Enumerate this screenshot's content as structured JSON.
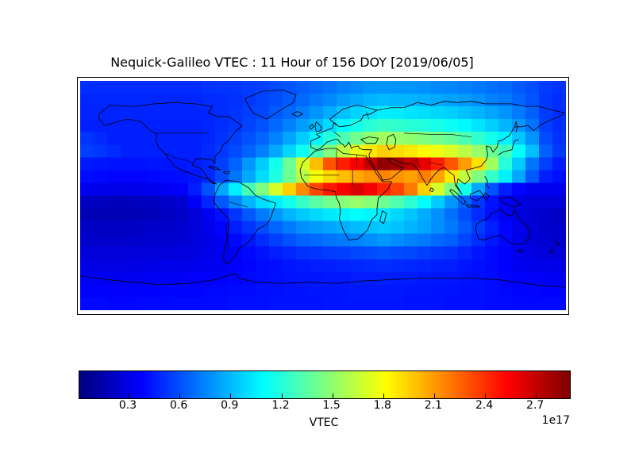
{
  "chart_data": {
    "type": "heatmap",
    "title": "Nequick-Galileo VTEC : 11 Hour of 156 DOY [2019/06/05]",
    "colormap": "jet",
    "colorbar_label": "VTEC",
    "units_exponent_label": "1e17",
    "vmin": 0.01,
    "vmax": 2.9,
    "colorbar_tick_labels": [
      "0.3",
      "0.6",
      "0.9",
      "1.2",
      "1.5",
      "1.8",
      "2.1",
      "2.4",
      "2.7"
    ],
    "colorbar_tick_values": [
      0.3,
      0.6,
      0.9,
      1.2,
      1.5,
      1.8,
      2.1,
      2.4,
      2.7
    ],
    "lon_range": [
      -180,
      180
    ],
    "lat_range": [
      -90,
      90
    ],
    "grid_cols": 36,
    "grid_rows": 18,
    "grid": [
      [
        0.5,
        0.5,
        0.5,
        0.5,
        0.5,
        0.5,
        0.5,
        0.5,
        0.5,
        0.51,
        0.52,
        0.52,
        0.54,
        0.55,
        0.58,
        0.61,
        0.64,
        0.67,
        0.7,
        0.73,
        0.76,
        0.79,
        0.8,
        0.79,
        0.79,
        0.78,
        0.76,
        0.75,
        0.73,
        0.71,
        0.69,
        0.67,
        0.63,
        0.59,
        0.54,
        0.52
      ],
      [
        0.48,
        0.48,
        0.48,
        0.48,
        0.48,
        0.48,
        0.48,
        0.48,
        0.48,
        0.49,
        0.5,
        0.51,
        0.53,
        0.56,
        0.59,
        0.63,
        0.67,
        0.72,
        0.76,
        0.81,
        0.85,
        0.88,
        0.9,
        0.89,
        0.88,
        0.87,
        0.85,
        0.83,
        0.81,
        0.78,
        0.74,
        0.71,
        0.66,
        0.61,
        0.53,
        0.5
      ],
      [
        0.47,
        0.47,
        0.47,
        0.47,
        0.47,
        0.47,
        0.47,
        0.47,
        0.47,
        0.48,
        0.5,
        0.52,
        0.55,
        0.57,
        0.62,
        0.67,
        0.73,
        0.79,
        0.86,
        0.92,
        0.97,
        1.02,
        1.05,
        1.04,
        1.02,
        1.0,
        0.98,
        0.96,
        0.92,
        0.88,
        0.84,
        0.79,
        0.72,
        0.64,
        0.54,
        0.5
      ],
      [
        0.46,
        0.46,
        0.46,
        0.46,
        0.46,
        0.46,
        0.46,
        0.46,
        0.46,
        0.48,
        0.5,
        0.52,
        0.56,
        0.6,
        0.67,
        0.74,
        0.82,
        0.9,
        0.99,
        1.08,
        1.15,
        1.21,
        1.25,
        1.23,
        1.21,
        1.19,
        1.16,
        1.12,
        1.08,
        1.02,
        0.96,
        0.89,
        0.8,
        0.7,
        0.55,
        0.5
      ],
      [
        0.52,
        0.49,
        0.46,
        0.46,
        0.46,
        0.46,
        0.46,
        0.46,
        0.46,
        0.48,
        0.51,
        0.55,
        0.6,
        0.66,
        0.74,
        0.84,
        0.95,
        1.07,
        1.19,
        1.31,
        1.41,
        1.5,
        1.55,
        1.52,
        1.5,
        1.46,
        1.42,
        1.38,
        1.31,
        1.23,
        1.15,
        1.06,
        0.93,
        0.79,
        0.59,
        0.51
      ],
      [
        0.55,
        0.52,
        0.49,
        0.46,
        0.46,
        0.46,
        0.46,
        0.46,
        0.46,
        0.49,
        0.53,
        0.58,
        0.65,
        0.73,
        0.85,
        0.98,
        1.13,
        1.29,
        1.46,
        1.62,
        1.76,
        1.88,
        1.95,
        1.91,
        1.88,
        1.83,
        1.77,
        1.71,
        1.62,
        1.52,
        1.4,
        1.28,
        1.1,
        0.91,
        0.64,
        0.53
      ],
      [
        0.44,
        0.43,
        0.42,
        0.42,
        0.42,
        0.43,
        0.43,
        0.44,
        0.45,
        0.48,
        0.55,
        0.65,
        0.8,
        0.95,
        1.15,
        1.4,
        1.7,
        2.0,
        2.3,
        2.45,
        2.55,
        2.7,
        2.85,
        2.8,
        2.72,
        2.6,
        2.45,
        2.3,
        2.1,
        1.9,
        1.55,
        1.2,
        0.95,
        0.7,
        0.55,
        0.45
      ],
      [
        0.4,
        0.39,
        0.38,
        0.38,
        0.38,
        0.39,
        0.4,
        0.41,
        0.43,
        0.48,
        0.58,
        0.7,
        0.85,
        1.0,
        1.18,
        1.4,
        1.62,
        1.8,
        1.92,
        2.0,
        2.06,
        2.12,
        2.16,
        2.12,
        2.08,
        2.18,
        2.08,
        1.88,
        1.65,
        1.45,
        1.25,
        1.05,
        0.85,
        0.62,
        0.46,
        0.41
      ],
      [
        0.33,
        0.32,
        0.31,
        0.31,
        0.32,
        0.33,
        0.34,
        0.36,
        0.45,
        0.6,
        0.85,
        1.05,
        1.3,
        1.45,
        1.7,
        1.95,
        2.15,
        2.35,
        2.47,
        2.56,
        2.65,
        2.56,
        2.44,
        2.35,
        2.2,
        1.95,
        1.7,
        1.45,
        1.15,
        0.85,
        0.6,
        0.45,
        0.38,
        0.34,
        0.33,
        0.33
      ],
      [
        0.2,
        0.19,
        0.18,
        0.18,
        0.19,
        0.2,
        0.22,
        0.25,
        0.35,
        0.48,
        0.62,
        0.76,
        0.88,
        1.0,
        1.05,
        1.15,
        1.25,
        1.35,
        1.42,
        1.48,
        1.52,
        1.48,
        1.4,
        1.32,
        1.22,
        1.1,
        0.95,
        0.8,
        0.65,
        0.52,
        0.42,
        0.35,
        0.3,
        0.27,
        0.26,
        0.26
      ],
      [
        0.17,
        0.16,
        0.16,
        0.16,
        0.17,
        0.18,
        0.2,
        0.22,
        0.26,
        0.33,
        0.42,
        0.52,
        0.62,
        0.72,
        0.8,
        0.88,
        0.94,
        0.99,
        1.03,
        1.06,
        1.09,
        1.07,
        1.03,
        0.98,
        0.93,
        0.86,
        0.78,
        0.69,
        0.59,
        0.49,
        0.41,
        0.34,
        0.28,
        0.25,
        0.23,
        0.21
      ],
      [
        0.21,
        0.2,
        0.2,
        0.2,
        0.21,
        0.22,
        0.23,
        0.24,
        0.27,
        0.32,
        0.38,
        0.45,
        0.52,
        0.59,
        0.66,
        0.72,
        0.78,
        0.81,
        0.84,
        0.87,
        0.9,
        0.92,
        0.95,
        0.92,
        0.88,
        0.84,
        0.78,
        0.72,
        0.63,
        0.54,
        0.46,
        0.38,
        0.31,
        0.26,
        0.23,
        0.22
      ],
      [
        0.23,
        0.22,
        0.22,
        0.22,
        0.23,
        0.24,
        0.24,
        0.25,
        0.27,
        0.3,
        0.34,
        0.39,
        0.44,
        0.5,
        0.55,
        0.6,
        0.65,
        0.67,
        0.7,
        0.72,
        0.74,
        0.77,
        0.8,
        0.77,
        0.74,
        0.71,
        0.67,
        0.64,
        0.57,
        0.5,
        0.44,
        0.38,
        0.31,
        0.26,
        0.24,
        0.23
      ],
      [
        0.27,
        0.26,
        0.26,
        0.26,
        0.26,
        0.27,
        0.27,
        0.28,
        0.29,
        0.31,
        0.33,
        0.36,
        0.39,
        0.42,
        0.45,
        0.48,
        0.51,
        0.52,
        0.54,
        0.55,
        0.57,
        0.58,
        0.6,
        0.58,
        0.57,
        0.55,
        0.53,
        0.51,
        0.47,
        0.43,
        0.39,
        0.36,
        0.32,
        0.29,
        0.27,
        0.27
      ],
      [
        0.3,
        0.29,
        0.29,
        0.29,
        0.3,
        0.3,
        0.31,
        0.31,
        0.32,
        0.33,
        0.34,
        0.36,
        0.38,
        0.4,
        0.41,
        0.43,
        0.44,
        0.45,
        0.46,
        0.47,
        0.48,
        0.49,
        0.5,
        0.49,
        0.48,
        0.47,
        0.46,
        0.45,
        0.43,
        0.41,
        0.39,
        0.37,
        0.34,
        0.32,
        0.31,
        0.3
      ],
      [
        0.34,
        0.33,
        0.33,
        0.33,
        0.34,
        0.34,
        0.35,
        0.35,
        0.36,
        0.36,
        0.37,
        0.38,
        0.39,
        0.4,
        0.41,
        0.42,
        0.43,
        0.43,
        0.44,
        0.44,
        0.45,
        0.45,
        0.46,
        0.45,
        0.45,
        0.44,
        0.43,
        0.43,
        0.42,
        0.41,
        0.4,
        0.38,
        0.37,
        0.36,
        0.35,
        0.34
      ],
      [
        0.37,
        0.37,
        0.36,
        0.36,
        0.37,
        0.37,
        0.38,
        0.38,
        0.38,
        0.39,
        0.39,
        0.4,
        0.4,
        0.41,
        0.41,
        0.42,
        0.42,
        0.43,
        0.43,
        0.43,
        0.44,
        0.44,
        0.44,
        0.44,
        0.43,
        0.43,
        0.42,
        0.42,
        0.41,
        0.41,
        0.4,
        0.39,
        0.38,
        0.38,
        0.37,
        0.37
      ],
      [
        0.39,
        0.39,
        0.38,
        0.38,
        0.39,
        0.39,
        0.39,
        0.4,
        0.4,
        0.4,
        0.4,
        0.41,
        0.41,
        0.41,
        0.42,
        0.42,
        0.42,
        0.42,
        0.43,
        0.43,
        0.43,
        0.43,
        0.43,
        0.43,
        0.42,
        0.42,
        0.42,
        0.41,
        0.41,
        0.41,
        0.4,
        0.4,
        0.39,
        0.39,
        0.39,
        0.39
      ]
    ]
  }
}
